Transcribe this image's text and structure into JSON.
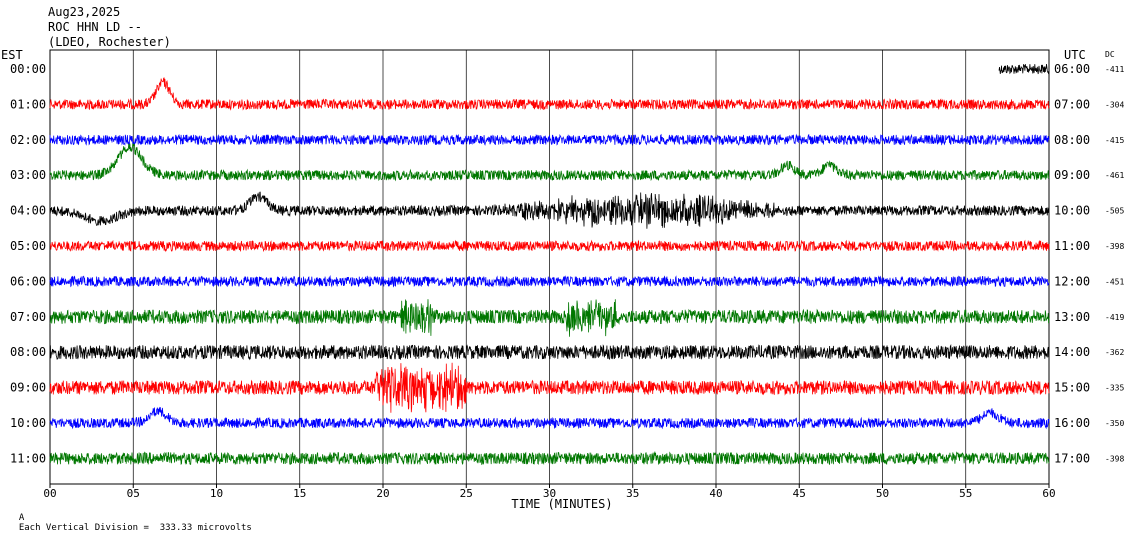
{
  "header": {
    "date": "Aug23,2025",
    "station": "ROC HHN LD --",
    "network": "(LDEO, Rochester)"
  },
  "left_axis_title": "EST",
  "right_axis_title": "UTC",
  "dc_title": "DC",
  "footer": {
    "mark": "A",
    "scale_note": "Each Vertical Division =  333.33 microvolts"
  },
  "colors": {
    "red": "#ff0000",
    "blue": "#0000ff",
    "green": "#007700",
    "black": "#000000",
    "grid": "#000000"
  },
  "chart_data": {
    "type": "line",
    "title": "",
    "xlabel": "TIME (MINUTES)",
    "ylabel": "",
    "xlim": [
      0,
      60
    ],
    "x_ticks": [
      "00",
      "05",
      "10",
      "15",
      "20",
      "25",
      "30",
      "35",
      "40",
      "45",
      "50",
      "55",
      "60"
    ],
    "grid": "vertical lines every 5 minutes",
    "rows": [
      {
        "est": "00:00",
        "utc": "06:00",
        "dc": "-411",
        "color": "black",
        "data_start_min": 57.0
      },
      {
        "est": "01:00",
        "utc": "07:00",
        "dc": "-304",
        "color": "red"
      },
      {
        "est": "02:00",
        "utc": "08:00",
        "dc": "-415",
        "color": "blue"
      },
      {
        "est": "03:00",
        "utc": "09:00",
        "dc": "-461",
        "color": "green"
      },
      {
        "est": "04:00",
        "utc": "10:00",
        "dc": "-505",
        "color": "black"
      },
      {
        "est": "05:00",
        "utc": "11:00",
        "dc": "-398",
        "color": "red"
      },
      {
        "est": "06:00",
        "utc": "12:00",
        "dc": "-451",
        "color": "blue"
      },
      {
        "est": "07:00",
        "utc": "13:00",
        "dc": "-419",
        "color": "green"
      },
      {
        "est": "08:00",
        "utc": "14:00",
        "dc": "-362",
        "color": "black"
      },
      {
        "est": "09:00",
        "utc": "15:00",
        "dc": "-335",
        "color": "red"
      },
      {
        "est": "10:00",
        "utc": "16:00",
        "dc": "-350",
        "color": "blue"
      },
      {
        "est": "11:00",
        "utc": "17:00",
        "dc": "-398",
        "color": "green"
      }
    ]
  }
}
